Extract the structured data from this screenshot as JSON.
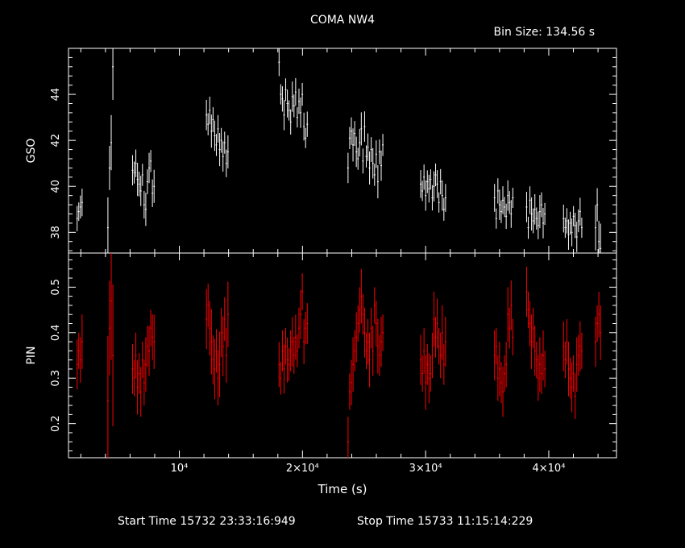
{
  "title": "COMA NW4",
  "bin_size_label": "Bin Size: 134.56 s",
  "x_axis_label": "Time (s)",
  "start_time_label": "Start Time 15732 23:33:16:949",
  "stop_time_label": "Stop Time 15733 11:15:14:229",
  "colors": {
    "gso": "#ffffff",
    "pin": "#ff0000",
    "axes": "#ffffff",
    "background": "#000000"
  },
  "chart_data": [
    {
      "type": "scatter",
      "panel": "top",
      "ylabel": "GSO",
      "xlim": [
        1000,
        45500
      ],
      "ylim": [
        37.1,
        46.0
      ],
      "yticks": [
        38,
        40,
        42,
        44
      ],
      "xticks": [
        10000,
        20000,
        30000,
        40000
      ],
      "xtick_labels": [
        "10⁴",
        "2×10⁴",
        "3×10⁴",
        "4×10⁴"
      ],
      "series": [
        {
          "color": "#ffffff",
          "segments": [
            {
              "x0": 1700,
              "n": 4,
              "values": [
                38.6,
                38.9,
                39.1,
                39.3
              ],
              "err": 0.5
            },
            {
              "x0": 4200,
              "n": 4,
              "values": [
                38.2,
                40.8,
                41.9,
                45.2
              ],
              "err": 1.2
            },
            {
              "x0": 6200,
              "n": 14,
              "values": [
                40.7,
                40.6,
                41.0,
                40.3,
                40.1,
                39.8,
                40.5,
                39.2,
                39.0,
                40.2,
                40.8,
                41.1,
                39.7,
                40.0
              ],
              "err": 0.6
            },
            {
              "x0": 12200,
              "n": 14,
              "values": [
                43.1,
                42.7,
                43.3,
                42.4,
                42.9,
                42.2,
                41.8,
                42.5,
                41.6,
                42.0,
                41.3,
                41.9,
                41.0,
                41.5
              ],
              "err": 0.6
            },
            {
              "x0": 18100,
              "n": 18,
              "values": [
                45.4,
                44.0,
                43.8,
                43.1,
                44.2,
                43.6,
                43.3,
                42.8,
                43.9,
                43.5,
                44.1,
                43.0,
                43.7,
                43.2,
                44.0,
                42.6,
                42.1,
                42.7
              ],
              "err": 0.55
            },
            {
              "x0": 23700,
              "n": 22,
              "values": [
                40.8,
                42.1,
                42.4,
                41.8,
                42.3,
                41.5,
                41.2,
                41.9,
                42.5,
                41.1,
                42.6,
                41.3,
                41.7,
                40.8,
                41.6,
                41.0,
                40.5,
                41.4,
                40.2,
                41.5,
                40.9,
                41.8
              ],
              "err": 0.6
            },
            {
              "x0": 29600,
              "n": 16,
              "values": [
                40.1,
                39.8,
                40.4,
                39.6,
                40.2,
                39.9,
                40.3,
                39.5,
                40.0,
                40.5,
                40.1,
                39.3,
                40.2,
                39.6,
                39.0,
                39.5
              ],
              "err": 0.55
            },
            {
              "x0": 35600,
              "n": 12,
              "values": [
                39.5,
                38.6,
                39.8,
                39.2,
                38.9,
                39.4,
                39.1,
                38.7,
                39.6,
                39.3,
                38.8,
                39.5
              ],
              "err": 0.55
            },
            {
              "x0": 38200,
              "n": 12,
              "values": [
                39.1,
                38.2,
                39.4,
                38.8,
                38.5,
                39.0,
                38.6,
                38.3,
                38.9,
                39.2,
                38.4,
                38.8
              ],
              "err": 0.6
            },
            {
              "x0": 41200,
              "n": 12,
              "values": [
                38.6,
                38.2,
                38.5,
                37.9,
                38.4,
                38.0,
                38.7,
                38.3,
                37.8,
                38.5,
                38.9,
                38.2
              ],
              "err": 0.55
            },
            {
              "x0": 43800,
              "n": 4,
              "values": [
                38.2,
                39.2,
                37.6,
                37.3
              ],
              "err": 0.9
            }
          ]
        }
      ]
    },
    {
      "type": "scatter",
      "panel": "bottom",
      "ylabel": "PIN",
      "xlim": [
        1000,
        45500
      ],
      "ylim": [
        0.125,
        0.575
      ],
      "yticks": [
        0.2,
        0.3,
        0.4,
        0.5
      ],
      "xticks": [
        10000,
        20000,
        30000,
        40000
      ],
      "series": [
        {
          "color": "#ff0000",
          "segments": [
            {
              "x0": 1700,
              "n": 4,
              "values": [
                0.33,
                0.36,
                0.34,
                0.38
              ],
              "err": 0.05
            },
            {
              "x0": 4200,
              "n": 4,
              "values": [
                0.25,
                0.41,
                0.47,
                0.35
              ],
              "err": 0.13
            },
            {
              "x0": 6200,
              "n": 14,
              "values": [
                0.32,
                0.3,
                0.35,
                0.28,
                0.31,
                0.27,
                0.34,
                0.29,
                0.33,
                0.37,
                0.36,
                0.41,
                0.39,
                0.38
              ],
              "err": 0.05
            },
            {
              "x0": 12200,
              "n": 14,
              "values": [
                0.43,
                0.46,
                0.41,
                0.38,
                0.34,
                0.32,
                0.36,
                0.3,
                0.33,
                0.4,
                0.37,
                0.43,
                0.35,
                0.44
              ],
              "err": 0.06
            },
            {
              "x0": 18100,
              "n": 18,
              "values": [
                0.33,
                0.3,
                0.36,
                0.32,
                0.37,
                0.34,
                0.33,
                0.36,
                0.38,
                0.35,
                0.39,
                0.36,
                0.41,
                0.44,
                0.49,
                0.38,
                0.41,
                0.42
              ],
              "err": 0.045
            },
            {
              "x0": 23700,
              "n": 22,
              "values": [
                0.16,
                0.27,
                0.29,
                0.33,
                0.36,
                0.39,
                0.42,
                0.45,
                0.48,
                0.44,
                0.4,
                0.36,
                0.38,
                0.34,
                0.41,
                0.36,
                0.46,
                0.42,
                0.37,
                0.35,
                0.38,
                0.4
              ],
              "err": 0.05
            },
            {
              "x0": 29600,
              "n": 16,
              "values": [
                0.34,
                0.31,
                0.36,
                0.29,
                0.33,
                0.3,
                0.31,
                0.35,
                0.43,
                0.39,
                0.42,
                0.37,
                0.35,
                0.4,
                0.33,
                0.38
              ],
              "err": 0.05
            },
            {
              "x0": 35600,
              "n": 12,
              "values": [
                0.35,
                0.37,
                0.3,
                0.32,
                0.29,
                0.27,
                0.31,
                0.33,
                0.44,
                0.41,
                0.46,
                0.39
              ],
              "err": 0.05
            },
            {
              "x0": 38200,
              "n": 12,
              "values": [
                0.49,
                0.45,
                0.42,
                0.38,
                0.41,
                0.36,
                0.34,
                0.3,
                0.33,
                0.31,
                0.35,
                0.32
              ],
              "err": 0.05
            },
            {
              "x0": 41200,
              "n": 12,
              "values": [
                0.37,
                0.34,
                0.38,
                0.32,
                0.3,
                0.28,
                0.31,
                0.26,
                0.33,
                0.35,
                0.37,
                0.36
              ],
              "err": 0.05
            },
            {
              "x0": 43800,
              "n": 4,
              "values": [
                0.38,
                0.42,
                0.44,
                0.4
              ],
              "err": 0.05
            }
          ]
        }
      ]
    }
  ]
}
